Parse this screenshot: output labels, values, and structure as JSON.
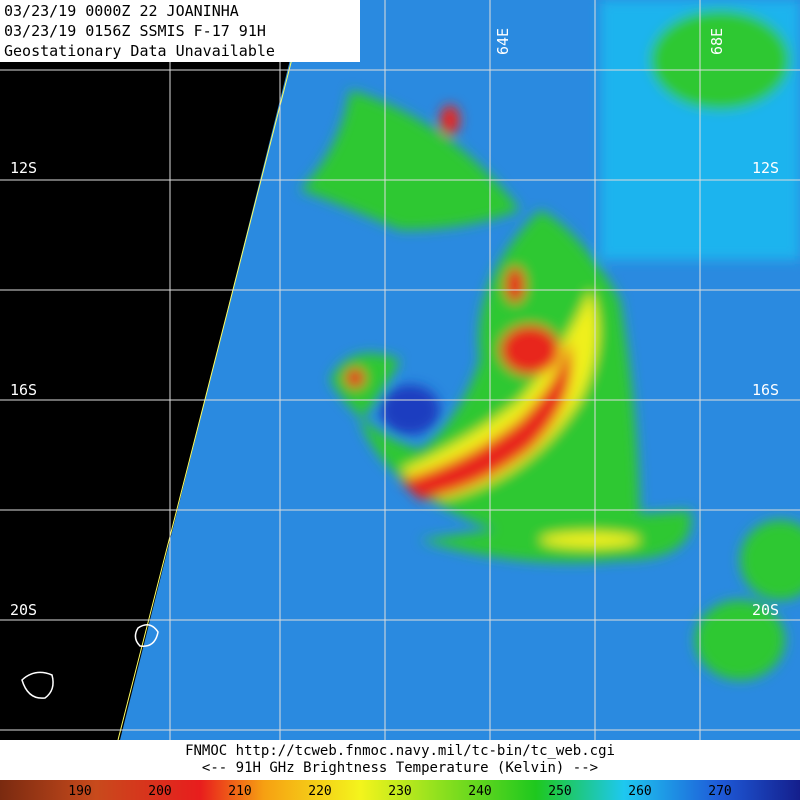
{
  "header": {
    "lines": [
      "03/23/19 0000Z  22 JOANINHA",
      "03/23/19 0156Z  SSMIS F-17 91H",
      "Geostationary Data Unavailable"
    ]
  },
  "grid_labels": {
    "latitudes": [
      "12S",
      "16S",
      "20S"
    ],
    "longitudes": [
      "64E",
      "68E"
    ]
  },
  "footer": {
    "lines": [
      "FNMOC  http://tcweb.fnmoc.navy.mil/tc-bin/tc_web.cgi",
      "<--  91H GHz Brightness Temperature (Kelvin)  -->"
    ]
  },
  "colorbar": {
    "labels": [
      "190",
      "200",
      "210",
      "220",
      "230",
      "240",
      "250",
      "260",
      "270"
    ]
  }
}
